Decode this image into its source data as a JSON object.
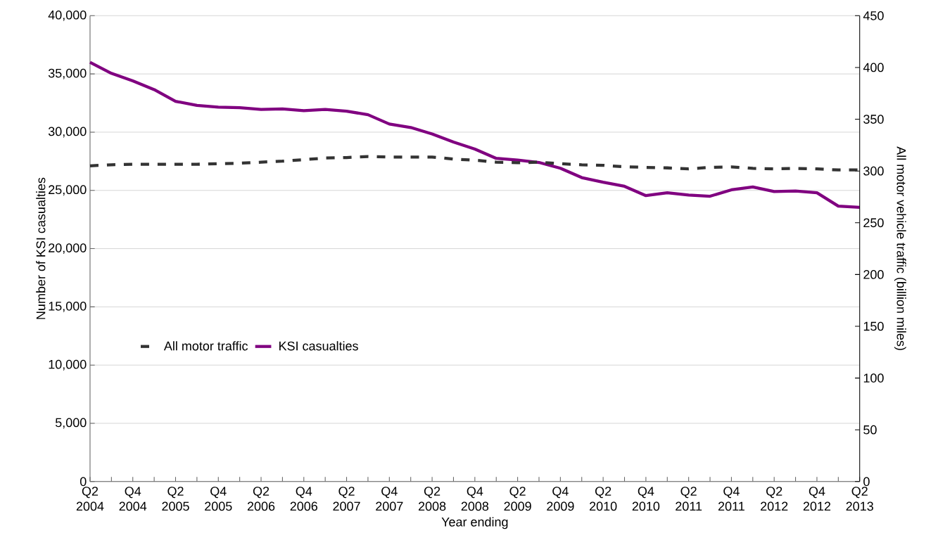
{
  "chart_data": {
    "type": "line",
    "xlabel": "Year ending",
    "ylabel": "Number of KSI casualties",
    "y2label": "All motor vehicle traffic (billion miles)",
    "categories": [
      "Q2 2004",
      null,
      "Q4 2004",
      null,
      "Q2 2005",
      null,
      "Q4 2005",
      null,
      "Q2 2006",
      null,
      "Q4 2006",
      null,
      "Q2 2007",
      null,
      "Q4 2007",
      null,
      "Q2 2008",
      null,
      "Q4 2008",
      null,
      "Q2 2009",
      null,
      "Q4 2009",
      null,
      "Q2 2010",
      null,
      "Q4 2010",
      null,
      "Q2 2011",
      null,
      "Q4 2011",
      null,
      "Q2 2012",
      null,
      "Q4 2012",
      null,
      "Q2 2013"
    ],
    "series": [
      {
        "name": "All motor traffic",
        "color": "#333333",
        "axis": "y2",
        "line_style": "dashed",
        "values": [
          305,
          306,
          306.5,
          306.5,
          306.5,
          306.5,
          307,
          307.5,
          308.5,
          309.5,
          311,
          312.5,
          313,
          314,
          313.5,
          313.5,
          313.5,
          311.5,
          310.5,
          308.5,
          308,
          308.5,
          307,
          306,
          305.5,
          304,
          303.5,
          303,
          302,
          303.5,
          304,
          302.5,
          302,
          302.5,
          302,
          301,
          301
        ]
      },
      {
        "name": "KSI casualties",
        "color": "#800080",
        "line_style": "solid",
        "values": [
          36000,
          35050,
          34400,
          33650,
          32650,
          32300,
          32150,
          32100,
          31950,
          32000,
          31850,
          31950,
          31800,
          31500,
          30700,
          30400,
          29850,
          29150,
          28550,
          27750,
          27600,
          27400,
          26900,
          26100,
          25700,
          25350,
          24550,
          24800,
          24600,
          24500,
          25050,
          25300,
          24900,
          24950,
          24800,
          23650,
          23550
        ]
      }
    ],
    "ylim": [
      0,
      40000
    ],
    "yticks": [
      {
        "value": 0,
        "label": "0"
      },
      {
        "value": 5000,
        "label": "5,000"
      },
      {
        "value": 10000,
        "label": "10,000"
      },
      {
        "value": 15000,
        "label": "15,000"
      },
      {
        "value": 20000,
        "label": "20,000"
      },
      {
        "value": 25000,
        "label": "25,000"
      },
      {
        "value": 30000,
        "label": "30,000"
      },
      {
        "value": 35000,
        "label": "35,000"
      },
      {
        "value": 40000,
        "label": "40,000"
      }
    ],
    "y2lim": [
      0,
      450
    ],
    "y2ticks": [
      0,
      50,
      100,
      150,
      200,
      250,
      300,
      350,
      400,
      450
    ],
    "grid": "y",
    "legend": "left",
    "marker": "none"
  }
}
